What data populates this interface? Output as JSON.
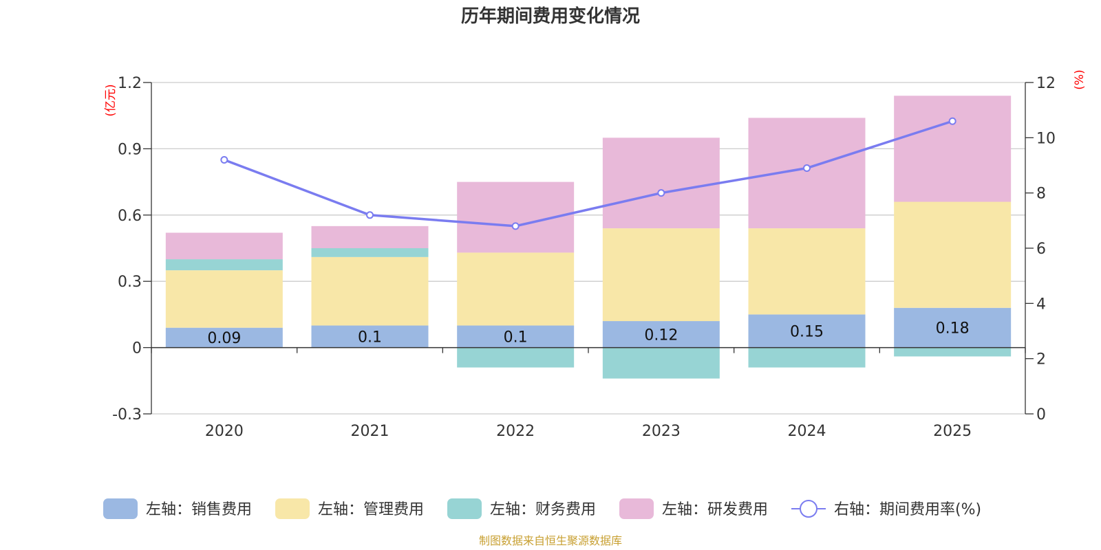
{
  "chart_data": {
    "type": "bar",
    "title": "历年期间费用变化情况",
    "categories": [
      "2020",
      "2021",
      "2022",
      "2023",
      "2024",
      "2025"
    ],
    "left_axis": {
      "unit": "(亿元)",
      "ylim": [
        -0.3,
        1.2
      ],
      "ticks": [
        "-0.3",
        "0",
        "0.3",
        "0.6",
        "0.9",
        "1.2"
      ],
      "tick_values": [
        -0.3,
        0,
        0.3,
        0.6,
        0.9,
        1.2
      ]
    },
    "right_axis": {
      "unit": "(%)",
      "ylim": [
        0,
        12
      ],
      "ticks": [
        "0",
        "2",
        "4",
        "6",
        "8",
        "10",
        "12"
      ],
      "tick_values": [
        0,
        2,
        4,
        6,
        8,
        10,
        12
      ]
    },
    "series": [
      {
        "name": "左轴：销售费用",
        "kind": "bar",
        "color": "#9bb8e2",
        "values": [
          0.09,
          0.1,
          0.1,
          0.12,
          0.15,
          0.18
        ],
        "labels": [
          "0.09",
          "0.1",
          "0.1",
          "0.12",
          "0.15",
          "0.18"
        ]
      },
      {
        "name": "左轴：管理费用",
        "kind": "bar",
        "color": "#f8e7a8",
        "values": [
          0.26,
          0.31,
          0.33,
          0.42,
          0.39,
          0.48
        ]
      },
      {
        "name": "左轴：财务费用",
        "kind": "bar",
        "color": "#97d4d4",
        "values": [
          0.05,
          0.04,
          -0.09,
          -0.14,
          -0.09,
          -0.04
        ]
      },
      {
        "name": "左轴：研发费用",
        "kind": "bar",
        "color": "#e8b9d9",
        "values": [
          0.12,
          0.1,
          0.32,
          0.41,
          0.5,
          0.48
        ]
      },
      {
        "name": "右轴：期间费用率(%)",
        "kind": "line",
        "color": "#7a7cf0",
        "values": [
          9.2,
          7.2,
          6.8,
          8.0,
          8.9,
          10.6
        ]
      }
    ],
    "legend_position": "bottom",
    "grid": true
  },
  "source": "制图数据来自恒生聚源数据库"
}
